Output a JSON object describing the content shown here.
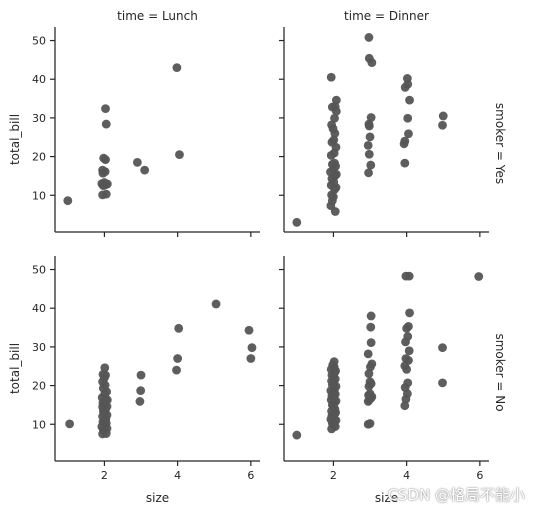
{
  "chart_data": {
    "type": "scatter",
    "xlabel": "size",
    "ylabel": "total_bill",
    "xlim": [
      0.65,
      6.25
    ],
    "ylim": [
      0.5,
      53.5
    ],
    "xticks": [
      2,
      4,
      6
    ],
    "yticks": [
      10,
      20,
      30,
      40,
      50
    ],
    "point_color": "#555555",
    "col_titles": [
      "time = Lunch",
      "time = Dinner"
    ],
    "row_titles": [
      "smoker = Yes",
      "smoker = No"
    ],
    "panels": [
      {
        "row": 0,
        "col": 0,
        "points": [
          [
            1.0,
            8.6
          ],
          [
            1.95,
            10.1
          ],
          [
            2.05,
            10.3
          ],
          [
            1.97,
            12.5
          ],
          [
            2.03,
            12.7
          ],
          [
            2.08,
            12.9
          ],
          [
            1.93,
            13.0
          ],
          [
            2.0,
            13.3
          ],
          [
            1.96,
            15.7
          ],
          [
            2.02,
            16.1
          ],
          [
            1.95,
            16.5
          ],
          [
            1.98,
            19.6
          ],
          [
            2.03,
            19.2
          ],
          [
            2.05,
            28.4
          ],
          [
            2.03,
            32.4
          ],
          [
            2.9,
            18.5
          ],
          [
            3.1,
            16.5
          ],
          [
            3.98,
            43.0
          ],
          [
            4.05,
            20.5
          ]
        ]
      },
      {
        "row": 0,
        "col": 1,
        "points": [
          [
            1.0,
            3.0
          ],
          [
            1.93,
            7.3
          ],
          [
            1.97,
            8.6
          ],
          [
            2.05,
            5.8
          ],
          [
            2.0,
            9.6
          ],
          [
            1.95,
            10.1
          ],
          [
            2.03,
            11.5
          ],
          [
            2.07,
            12.0
          ],
          [
            1.94,
            12.6
          ],
          [
            2.01,
            13.4
          ],
          [
            1.96,
            14.3
          ],
          [
            2.04,
            15.0
          ],
          [
            2.08,
            15.4
          ],
          [
            1.92,
            16.0
          ],
          [
            2.0,
            16.7
          ],
          [
            2.06,
            17.5
          ],
          [
            1.97,
            18.0
          ],
          [
            2.03,
            18.3
          ],
          [
            1.94,
            20.3
          ],
          [
            2.02,
            20.9
          ],
          [
            2.07,
            22.4
          ],
          [
            1.96,
            23.7
          ],
          [
            2.01,
            24.3
          ],
          [
            2.04,
            26.0
          ],
          [
            1.99,
            27.2
          ],
          [
            1.95,
            28.2
          ],
          [
            2.03,
            29.9
          ],
          [
            2.08,
            31.7
          ],
          [
            1.97,
            32.8
          ],
          [
            2.05,
            32.9
          ],
          [
            2.08,
            34.6
          ],
          [
            1.94,
            40.5
          ],
          [
            2.96,
            15.8
          ],
          [
            3.02,
            17.8
          ],
          [
            2.98,
            20.6
          ],
          [
            2.95,
            22.9
          ],
          [
            3.0,
            25.1
          ],
          [
            2.98,
            27.9
          ],
          [
            2.97,
            28.4
          ],
          [
            3.03,
            30.1
          ],
          [
            3.05,
            44.3
          ],
          [
            2.98,
            45.4
          ],
          [
            2.97,
            50.8
          ],
          [
            3.95,
            18.3
          ],
          [
            3.93,
            23.3
          ],
          [
            3.95,
            24.0
          ],
          [
            4.05,
            25.9
          ],
          [
            4.03,
            29.9
          ],
          [
            4.08,
            34.6
          ],
          [
            3.96,
            37.9
          ],
          [
            4.03,
            38.7
          ],
          [
            4.02,
            40.2
          ],
          [
            4.98,
            28.1
          ],
          [
            5.0,
            30.5
          ]
        ]
      },
      {
        "row": 1,
        "col": 0,
        "points": [
          [
            1.05,
            10.1
          ],
          [
            1.95,
            7.5
          ],
          [
            2.05,
            7.6
          ],
          [
            2.0,
            8.4
          ],
          [
            1.97,
            8.6
          ],
          [
            2.07,
            8.9
          ],
          [
            1.93,
            9.4
          ],
          [
            2.02,
            10.0
          ],
          [
            2.05,
            10.3
          ],
          [
            1.96,
            10.6
          ],
          [
            2.0,
            11.0
          ],
          [
            2.04,
            11.4
          ],
          [
            1.95,
            12.0
          ],
          [
            2.07,
            12.4
          ],
          [
            2.0,
            12.9
          ],
          [
            1.97,
            13.4
          ],
          [
            2.03,
            13.8
          ],
          [
            1.95,
            14.5
          ],
          [
            2.07,
            14.6
          ],
          [
            2.0,
            15.0
          ],
          [
            1.96,
            15.5
          ],
          [
            2.03,
            16.0
          ],
          [
            2.08,
            16.3
          ],
          [
            1.94,
            16.9
          ],
          [
            2.01,
            17.8
          ],
          [
            2.06,
            18.4
          ],
          [
            1.97,
            19.3
          ],
          [
            2.02,
            20.1
          ],
          [
            1.95,
            21.0
          ],
          [
            2.0,
            22.0
          ],
          [
            2.03,
            22.7
          ],
          [
            1.96,
            22.9
          ],
          [
            2.01,
            24.6
          ],
          [
            2.97,
            15.9
          ],
          [
            2.99,
            18.7
          ],
          [
            3.0,
            22.7
          ],
          [
            3.97,
            24.0
          ],
          [
            4.0,
            27.0
          ],
          [
            4.03,
            34.8
          ],
          [
            5.05,
            41.1
          ],
          [
            5.95,
            34.3
          ],
          [
            6.03,
            29.8
          ],
          [
            6.0,
            27.0
          ]
        ]
      },
      {
        "row": 1,
        "col": 1,
        "points": [
          [
            1.0,
            7.2
          ],
          [
            1.95,
            8.8
          ],
          [
            2.05,
            9.4
          ],
          [
            2.0,
            9.9
          ],
          [
            1.97,
            10.3
          ],
          [
            2.03,
            10.6
          ],
          [
            2.07,
            11.0
          ],
          [
            1.93,
            11.3
          ],
          [
            2.0,
            11.7
          ],
          [
            1.96,
            12.2
          ],
          [
            2.02,
            12.6
          ],
          [
            2.06,
            13.0
          ],
          [
            1.95,
            13.4
          ],
          [
            2.04,
            13.9
          ],
          [
            2.0,
            14.5
          ],
          [
            1.97,
            15.0
          ],
          [
            2.03,
            15.5
          ],
          [
            2.07,
            16.0
          ],
          [
            1.94,
            16.3
          ],
          [
            2.01,
            16.9
          ],
          [
            1.96,
            17.3
          ],
          [
            2.05,
            17.8
          ],
          [
            2.0,
            18.3
          ],
          [
            1.93,
            18.7
          ],
          [
            2.03,
            19.1
          ],
          [
            2.07,
            19.8
          ],
          [
            1.97,
            20.2
          ],
          [
            2.01,
            20.7
          ],
          [
            1.95,
            21.2
          ],
          [
            2.05,
            21.7
          ],
          [
            2.0,
            22.3
          ],
          [
            1.96,
            22.7
          ],
          [
            2.03,
            23.3
          ],
          [
            2.06,
            23.8
          ],
          [
            1.94,
            24.2
          ],
          [
            2.02,
            24.8
          ],
          [
            1.98,
            25.3
          ],
          [
            2.02,
            26.2
          ],
          [
            2.95,
            10.0
          ],
          [
            3.0,
            10.2
          ],
          [
            2.95,
            15.9
          ],
          [
            2.98,
            16.3
          ],
          [
            3.03,
            16.8
          ],
          [
            3.05,
            17.1
          ],
          [
            2.96,
            17.5
          ],
          [
            3.0,
            17.9
          ],
          [
            2.97,
            19.8
          ],
          [
            3.03,
            20.5
          ],
          [
            3.0,
            21.0
          ],
          [
            2.97,
            23.1
          ],
          [
            3.01,
            24.8
          ],
          [
            3.05,
            25.6
          ],
          [
            2.95,
            28.2
          ],
          [
            3.03,
            31.1
          ],
          [
            3.02,
            35.1
          ],
          [
            3.03,
            38.0
          ],
          [
            3.95,
            14.8
          ],
          [
            3.98,
            16.5
          ],
          [
            4.02,
            17.9
          ],
          [
            3.96,
            19.5
          ],
          [
            4.03,
            20.7
          ],
          [
            4.0,
            24.2
          ],
          [
            3.95,
            25.1
          ],
          [
            4.05,
            26.5
          ],
          [
            3.98,
            27.0
          ],
          [
            4.07,
            29.0
          ],
          [
            3.97,
            31.3
          ],
          [
            4.03,
            32.7
          ],
          [
            4.0,
            34.8
          ],
          [
            4.05,
            35.3
          ],
          [
            4.08,
            38.8
          ],
          [
            3.98,
            48.3
          ],
          [
            4.07,
            48.3
          ],
          [
            4.98,
            20.7
          ],
          [
            4.98,
            29.8
          ],
          [
            5.97,
            48.2
          ]
        ]
      }
    ]
  },
  "watermark": "CSDN @格局不能小"
}
